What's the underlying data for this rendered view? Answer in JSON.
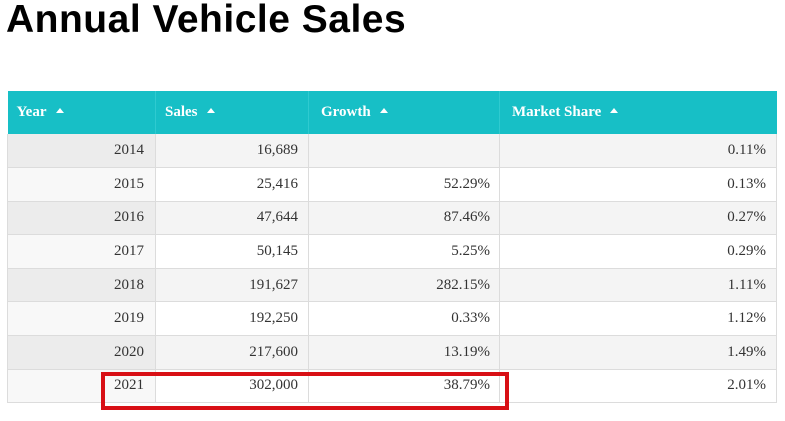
{
  "page": {
    "title": "Annual Vehicle Sales"
  },
  "table": {
    "columns": [
      {
        "label": "Year",
        "sort": "ascending"
      },
      {
        "label": "Sales",
        "sort": "ascending"
      },
      {
        "label": "Growth",
        "sort": "ascending"
      },
      {
        "label": "Market Share",
        "sort": "ascending"
      }
    ],
    "rows": [
      {
        "year": "2014",
        "sales": "16,689",
        "growth": "",
        "share": "0.11%"
      },
      {
        "year": "2015",
        "sales": "25,416",
        "growth": "52.29%",
        "share": "0.13%"
      },
      {
        "year": "2016",
        "sales": "47,644",
        "growth": "87.46%",
        "share": "0.27%"
      },
      {
        "year": "2017",
        "sales": "50,145",
        "growth": "5.25%",
        "share": "0.29%"
      },
      {
        "year": "2018",
        "sales": "191,627",
        "growth": "282.15%",
        "share": "1.11%"
      },
      {
        "year": "2019",
        "sales": "192,250",
        "growth": "0.33%",
        "share": "1.12%"
      },
      {
        "year": "2020",
        "sales": "217,600",
        "growth": "13.19%",
        "share": "1.49%"
      },
      {
        "year": "2021",
        "sales": "302,000",
        "growth": "38.79%",
        "share": "2.01%"
      }
    ],
    "highlighted_row": "2021"
  },
  "colors": {
    "header_background": "#17bfc6",
    "header_text": "#ffffff",
    "highlight_border": "#d80f15",
    "title_text": "#000000"
  },
  "icons": {
    "sort": "sort-ascending-icon"
  }
}
